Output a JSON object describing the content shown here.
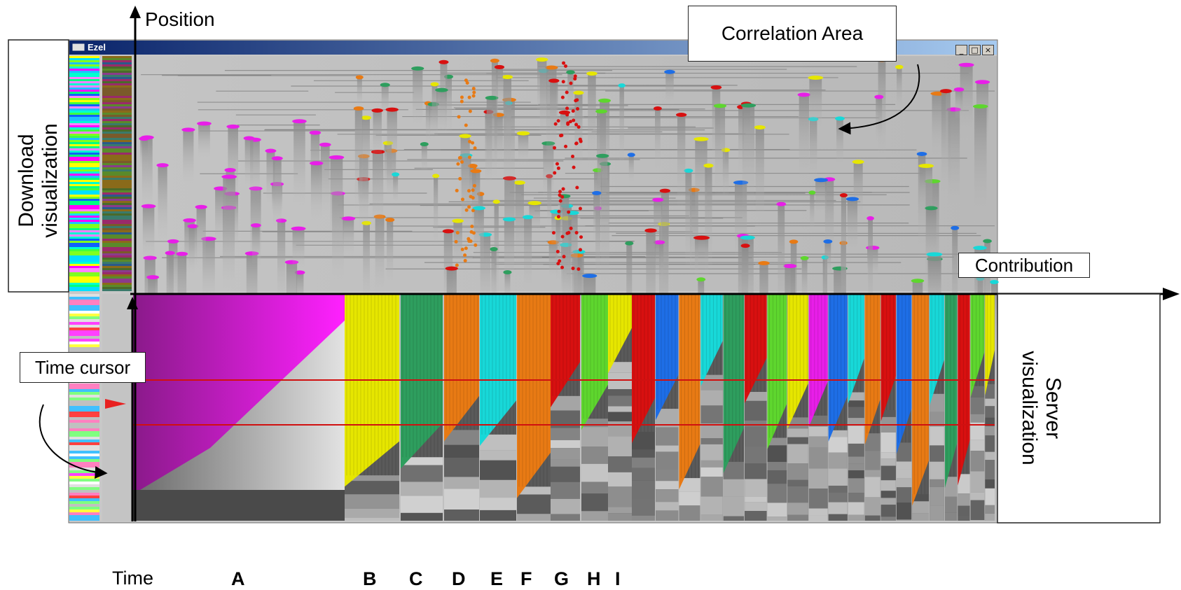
{
  "window": {
    "title": "Ezel"
  },
  "axes": {
    "position": "Position",
    "contribution": "Contribution",
    "time": "Time"
  },
  "callouts": {
    "correlation_area": "Correlation Area",
    "time_cursor": "Time cursor"
  },
  "side_labels": {
    "download": [
      "Download",
      "visualization"
    ],
    "server": [
      "Server",
      "visualization"
    ]
  },
  "groups": [
    "A",
    "B",
    "C",
    "D",
    "E",
    "F",
    "G",
    "H",
    "I"
  ],
  "colors": {
    "magenta": "#e81ee8",
    "yellow": "#e6e600",
    "green": "#2e9e5e",
    "orange": "#e87a14",
    "cyan": "#18d8d8",
    "red": "#d81010",
    "lightgreen": "#5ed62e",
    "blue": "#1e6ee6",
    "time_cursor": "#d01010",
    "titlebar": "#0a246a"
  }
}
